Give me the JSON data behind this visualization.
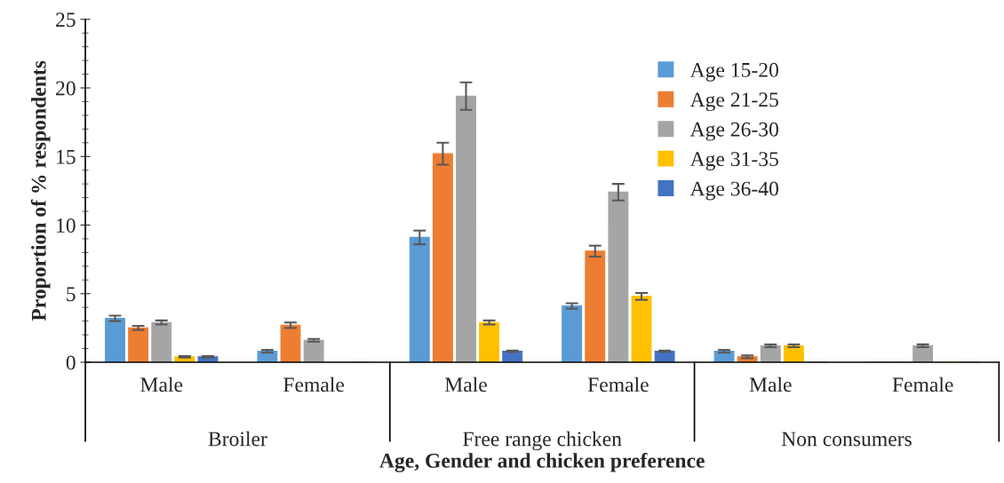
{
  "chart_data": {
    "type": "bar",
    "xlabel": "Age, Gender and chicken preference",
    "ylabel": "Proportion of % respondents",
    "categories": [
      "Male",
      "Female",
      "Male",
      "Female",
      "Male",
      "Female"
    ],
    "annotations": [
      "Broiler",
      "Free range chicken",
      "Non consumers"
    ],
    "series": [
      {
        "name": "Age 15-20",
        "color": "#5b9bd5",
        "values": [
          3.2,
          0.8,
          9.1,
          4.1,
          0.8,
          0
        ],
        "errors": [
          0.2,
          0.1,
          0.5,
          0.2,
          0.1,
          null
        ]
      },
      {
        "name": "Age 21-25",
        "color": "#ed7d31",
        "values": [
          2.5,
          2.7,
          15.2,
          8.1,
          0.4,
          0
        ],
        "errors": [
          0.15,
          0.2,
          0.8,
          0.4,
          0.1,
          null
        ]
      },
      {
        "name": "Age 26-30",
        "color": "#a5a5a5",
        "values": [
          2.9,
          1.6,
          19.4,
          12.4,
          1.2,
          1.2
        ],
        "errors": [
          0.15,
          0.1,
          1.0,
          0.6,
          0.1,
          0.1
        ]
      },
      {
        "name": "Age 31-35",
        "color": "#ffc000",
        "values": [
          0.4,
          0,
          2.9,
          4.8,
          1.2,
          0
        ],
        "errors": [
          0.05,
          null,
          0.15,
          0.25,
          0.1,
          null
        ]
      },
      {
        "name": "Age 36-40",
        "color": "#4472c4",
        "values": [
          0.4,
          0,
          0.8,
          0.8,
          0,
          0
        ],
        "errors": [
          0.05,
          null,
          0.05,
          0.05,
          null,
          null
        ]
      }
    ],
    "ylim": [
      0,
      25
    ],
    "yticks": [
      0,
      5,
      10,
      15,
      20,
      25
    ],
    "grid": false,
    "legend": "top right"
  }
}
